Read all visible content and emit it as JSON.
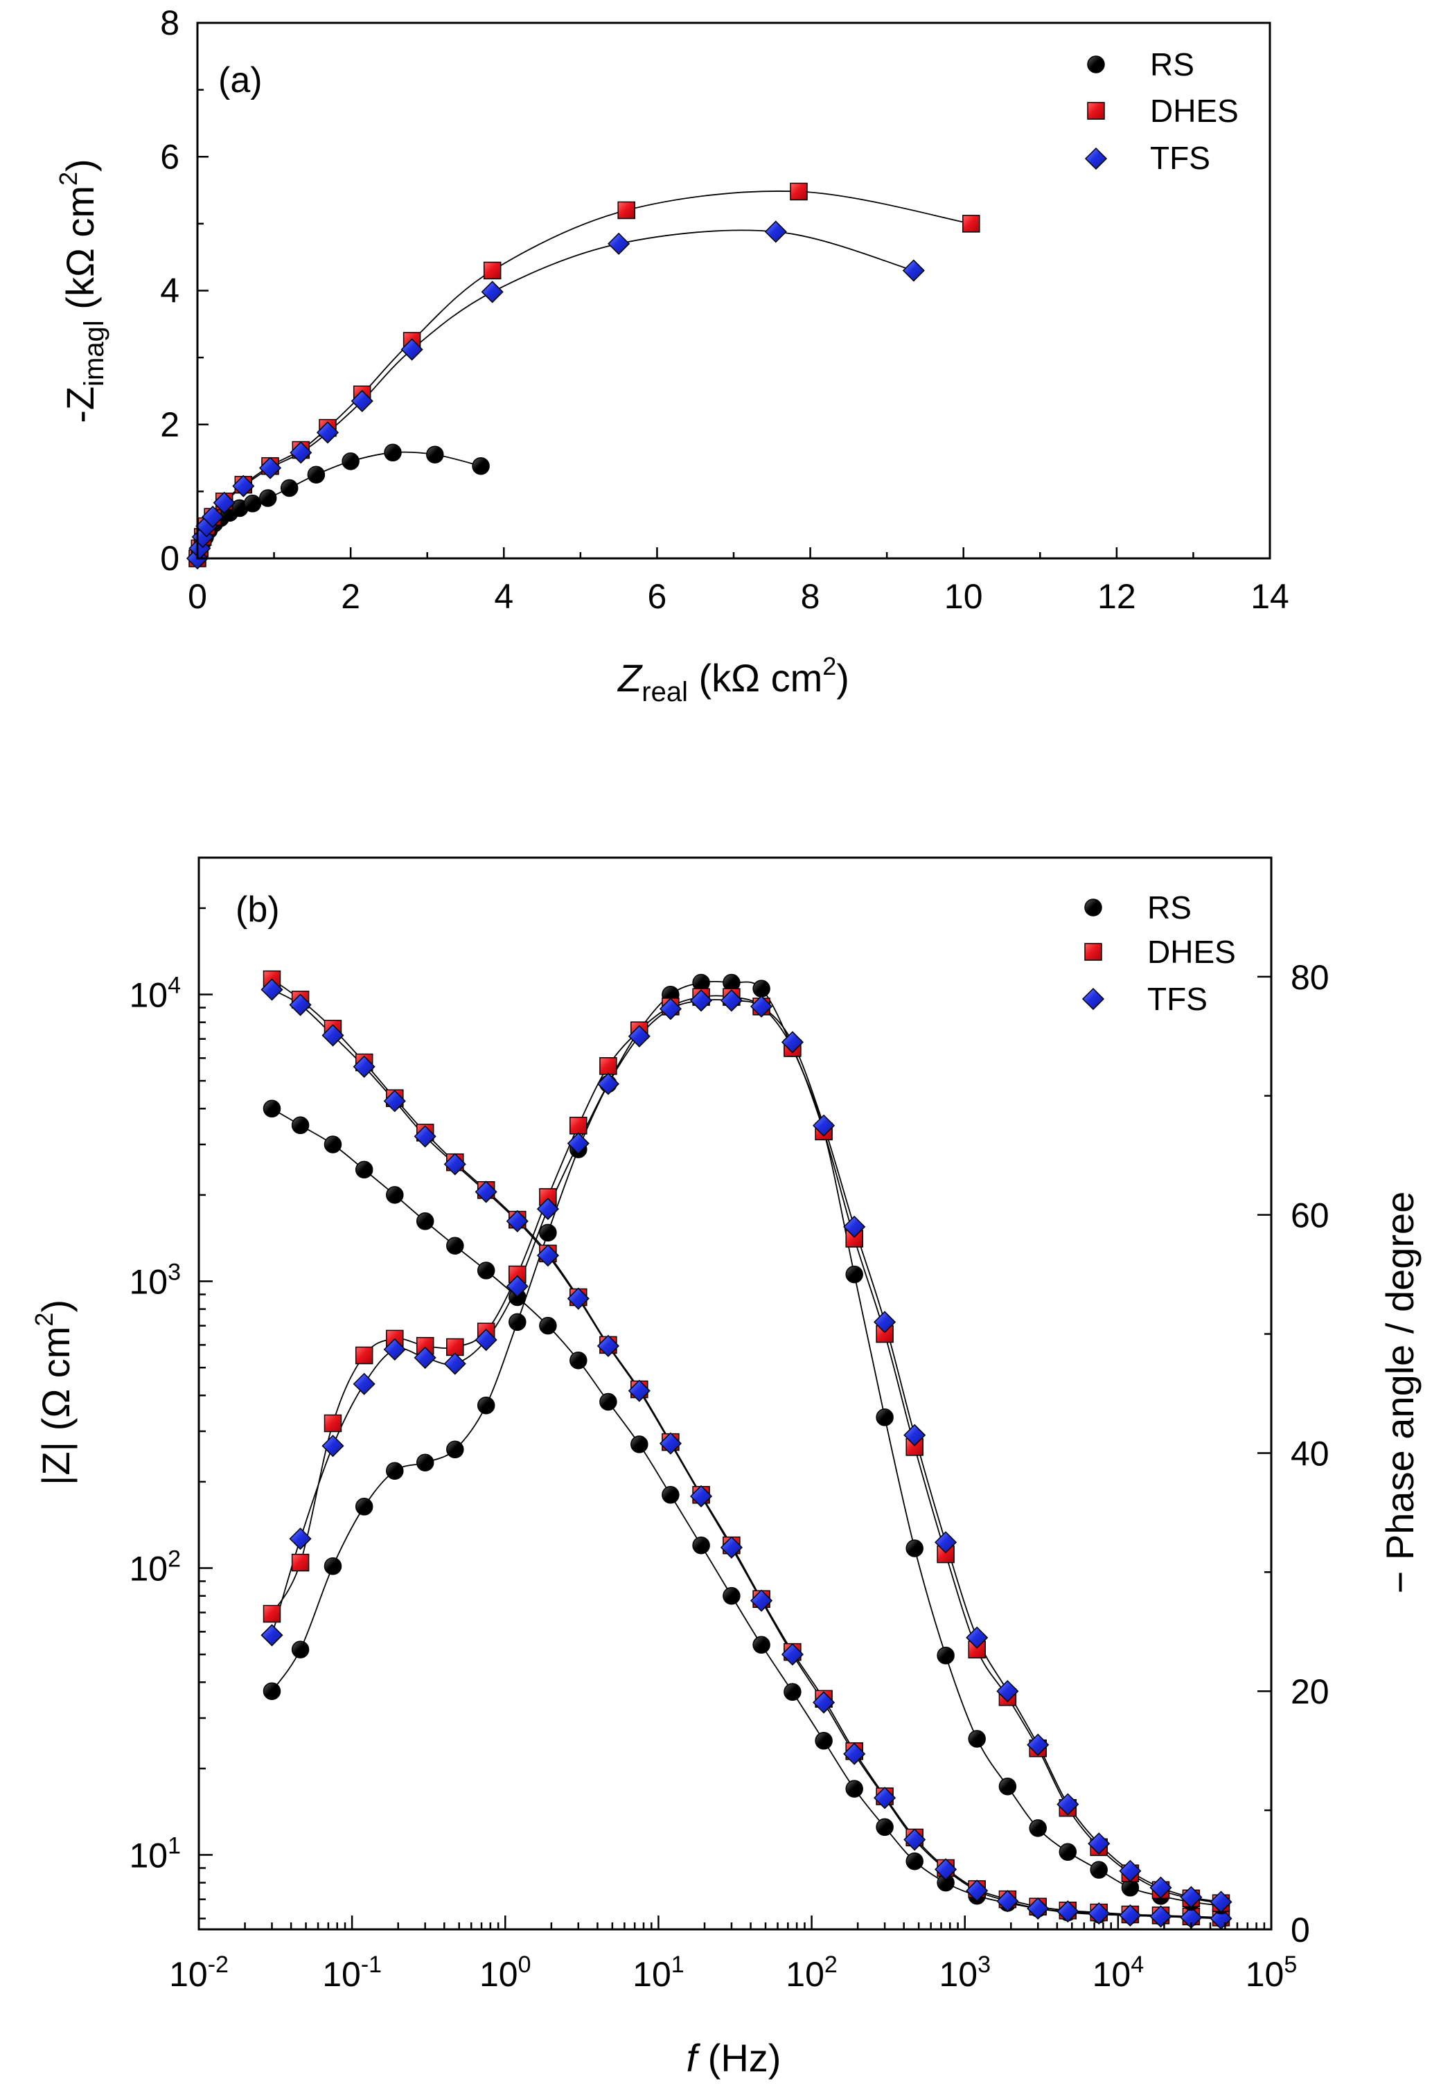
{
  "colors": {
    "RS": "#000000",
    "DHES": "#e8141c",
    "TFS": "#1f2fe0"
  },
  "chart_data": [
    {
      "type": "scatter",
      "panel_label": "(a)",
      "xlabel": "Z",
      "xlabel_sub": "real",
      "xlabel_unit": " (kΩ cm",
      "ylabel": "-Z",
      "ylabel_sub": "imagl",
      "ylabel_unit": " (kΩ cm",
      "xlim": [
        0,
        14
      ],
      "ylim": [
        0,
        8
      ],
      "xticks": [
        0,
        2,
        4,
        6,
        8,
        10,
        12,
        14
      ],
      "yticks": [
        0,
        2,
        4,
        6,
        8
      ],
      "legend": [
        "RS",
        "DHES",
        "TFS"
      ],
      "series": [
        {
          "name": "RS",
          "marker": "circle",
          "x": [
            0.0,
            0.03,
            0.06,
            0.1,
            0.15,
            0.22,
            0.3,
            0.42,
            0.55,
            0.72,
            0.92,
            1.2,
            1.55,
            2.0,
            2.55,
            3.1,
            3.7
          ],
          "y": [
            0.0,
            0.12,
            0.22,
            0.32,
            0.42,
            0.52,
            0.6,
            0.68,
            0.75,
            0.82,
            0.9,
            1.05,
            1.25,
            1.45,
            1.58,
            1.55,
            1.38
          ]
        },
        {
          "name": "DHES",
          "marker": "square",
          "x": [
            0.0,
            0.03,
            0.07,
            0.12,
            0.2,
            0.35,
            0.6,
            0.95,
            1.35,
            1.7,
            2.15,
            2.8,
            3.85,
            5.6,
            7.85,
            10.1
          ],
          "y": [
            0.0,
            0.15,
            0.32,
            0.48,
            0.62,
            0.85,
            1.1,
            1.38,
            1.62,
            1.95,
            2.45,
            3.25,
            4.3,
            5.2,
            5.48,
            5.0
          ]
        },
        {
          "name": "TFS",
          "marker": "diamond",
          "x": [
            0.0,
            0.03,
            0.07,
            0.12,
            0.2,
            0.35,
            0.6,
            0.95,
            1.35,
            1.7,
            2.15,
            2.8,
            3.85,
            5.5,
            7.55,
            9.35
          ],
          "y": [
            0.0,
            0.15,
            0.32,
            0.48,
            0.62,
            0.83,
            1.08,
            1.35,
            1.58,
            1.88,
            2.35,
            3.12,
            3.98,
            4.7,
            4.88,
            4.3
          ]
        }
      ]
    },
    {
      "type": "scatter",
      "panel_label": "(b)",
      "xlabel": "f",
      "xlabel_unit": " (Hz)",
      "ylabel": "|Z| (Ω cm",
      "y2label": "− Phase angle / degree",
      "xscale": "log",
      "yscale": "log",
      "xlim": [
        0.01,
        100000
      ],
      "ylim": [
        5.5,
        30000
      ],
      "y2lim": [
        0,
        90
      ],
      "xtick_exponents": [
        "-2",
        "-1",
        "0",
        "1",
        "2",
        "3",
        "4",
        "5"
      ],
      "ytick_exponents": [
        "1",
        "2",
        "3",
        "4"
      ],
      "y2ticks": [
        0,
        20,
        40,
        60,
        80
      ],
      "legend": [
        "RS",
        "DHES",
        "TFS"
      ],
      "frequency": [
        0.03,
        0.046,
        0.075,
        0.12,
        0.19,
        0.3,
        0.47,
        0.75,
        1.2,
        1.9,
        3.0,
        4.7,
        7.5,
        12,
        19,
        30,
        47,
        75,
        120,
        190,
        300,
        470,
        750,
        1200,
        1900,
        3000,
        4700,
        7500,
        12000,
        19000,
        30000,
        47000
      ],
      "modulus_series": [
        {
          "name": "RS",
          "marker": "circle",
          "values": [
            4000,
            3500,
            3000,
            2450,
            2000,
            1620,
            1330,
            1090,
            880,
            700,
            530,
            380,
            270,
            180,
            120,
            80,
            54,
            37,
            25,
            17,
            12.5,
            9.5,
            8,
            7.2,
            6.8,
            6.5,
            6.3,
            6.2,
            6.15,
            6.1,
            6.05,
            6.0
          ]
        },
        {
          "name": "DHES",
          "marker": "square",
          "values": [
            11300,
            9600,
            7600,
            5800,
            4350,
            3300,
            2600,
            2080,
            1640,
            1250,
            880,
            600,
            420,
            275,
            180,
            120,
            78,
            51,
            35,
            23,
            16,
            11.5,
            9,
            7.6,
            7,
            6.6,
            6.4,
            6.3,
            6.2,
            6.15,
            6.1,
            6.05
          ]
        },
        {
          "name": "TFS",
          "marker": "diamond",
          "values": [
            10400,
            9200,
            7200,
            5600,
            4250,
            3200,
            2560,
            2050,
            1620,
            1230,
            870,
            595,
            415,
            272,
            178,
            118,
            77,
            50,
            34,
            22.5,
            15.8,
            11.3,
            8.9,
            7.5,
            6.9,
            6.5,
            6.35,
            6.25,
            6.15,
            6.1,
            6.05,
            6.0
          ]
        }
      ],
      "phase_series": [
        {
          "name": "RS",
          "marker": "circle",
          "values": [
            20,
            23.5,
            30.5,
            35.5,
            38.5,
            39.2,
            40.3,
            44,
            51,
            58.5,
            65.5,
            71,
            75.5,
            78.5,
            79.5,
            79.5,
            79,
            74,
            67,
            55,
            43,
            32,
            23,
            16,
            12,
            8.5,
            6.5,
            5,
            3.5,
            2.8,
            2.3,
            2
          ]
        },
        {
          "name": "DHES",
          "marker": "square",
          "values": [
            26.5,
            30.8,
            42.5,
            48.2,
            49.6,
            49,
            48.9,
            50.2,
            55,
            61.5,
            67.5,
            72.5,
            75.5,
            77.5,
            78.3,
            78.3,
            77.5,
            74,
            67,
            58,
            50,
            40.5,
            31.5,
            23.5,
            19.5,
            15.2,
            10.2,
            6.9,
            4.7,
            3.3,
            2.6,
            2.2
          ]
        },
        {
          "name": "TFS",
          "marker": "diamond",
          "values": [
            24.7,
            32.8,
            40.6,
            45.8,
            48.7,
            48,
            47.5,
            49.5,
            54,
            60.5,
            66,
            71,
            75,
            77.3,
            78,
            78,
            77.5,
            74.5,
            67.5,
            59,
            51,
            41.5,
            32.5,
            24.5,
            20,
            15.5,
            10.5,
            7.2,
            4.9,
            3.5,
            2.7,
            2.3
          ]
        }
      ]
    }
  ]
}
